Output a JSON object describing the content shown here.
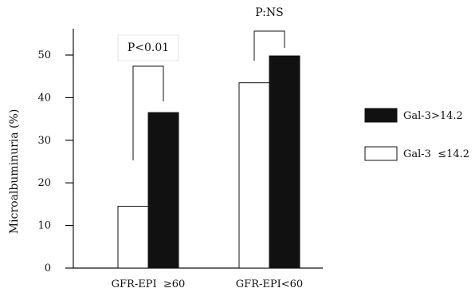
{
  "chart_data": {
    "type": "bar",
    "title": "",
    "xlabel": "",
    "ylabel": "Microalbuminuria (%)",
    "ylim": [
      0,
      55
    ],
    "yticks": [
      0,
      10,
      20,
      30,
      40,
      50
    ],
    "grid": false,
    "categories": [
      "GFR-EPI  ≥60",
      "GFR-EPI<60"
    ],
    "series": [
      {
        "name": "Gal-3  ≤14.2",
        "color": "#ffffff",
        "values": [
          14.5,
          43.5
        ]
      },
      {
        "name": "Gal-3>14.2",
        "color": "#111111",
        "values": [
          36.5,
          49.8
        ]
      }
    ],
    "legend_position": "right",
    "annotations": [
      {
        "text": "P<0.01",
        "category": 0,
        "boxed": true
      },
      {
        "text": "P:NS",
        "category": 1,
        "boxed": false
      }
    ]
  }
}
